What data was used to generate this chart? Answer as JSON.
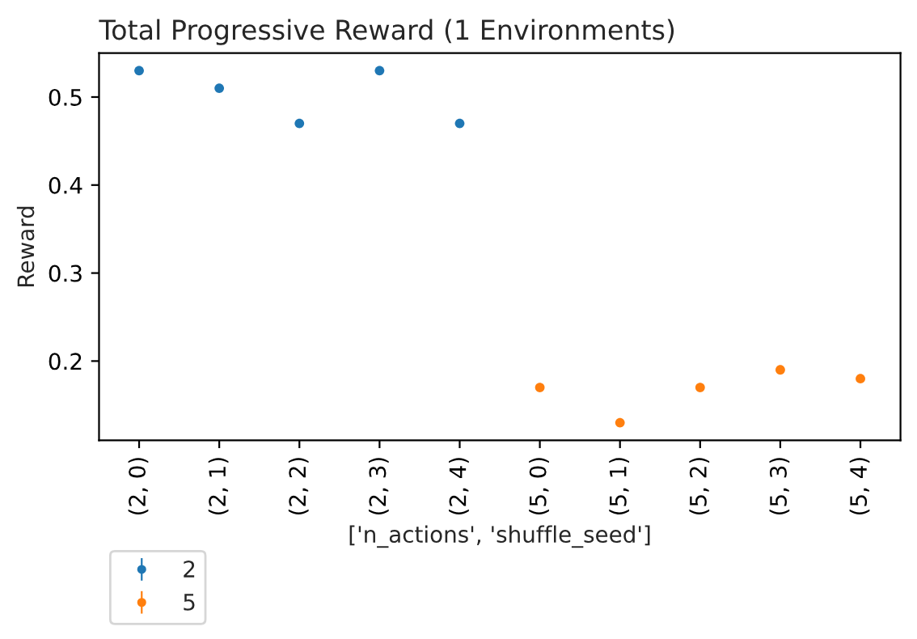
{
  "chart_data": {
    "type": "scatter",
    "title": "Total Progressive Reward (1 Environments)",
    "xlabel": "['n_actions', 'shuffle_seed']",
    "ylabel": "Reward",
    "categories": [
      "(2, 0)",
      "(2, 1)",
      "(2, 2)",
      "(2, 3)",
      "(2, 4)",
      "(5, 0)",
      "(5, 1)",
      "(5, 2)",
      "(5, 3)",
      "(5, 4)"
    ],
    "series": [
      {
        "name": "2",
        "color": "#1f77b4",
        "values": [
          0.53,
          0.51,
          0.47,
          0.53,
          0.47,
          null,
          null,
          null,
          null,
          null
        ]
      },
      {
        "name": "5",
        "color": "#ff7f0e",
        "values": [
          null,
          null,
          null,
          null,
          null,
          0.17,
          0.13,
          0.17,
          0.19,
          0.18
        ]
      }
    ],
    "ylim": [
      0.11,
      0.55
    ],
    "yticks": [
      0.2,
      0.3,
      0.4,
      0.5
    ],
    "grid": false,
    "legend": "bottom left",
    "marker": "circle"
  }
}
